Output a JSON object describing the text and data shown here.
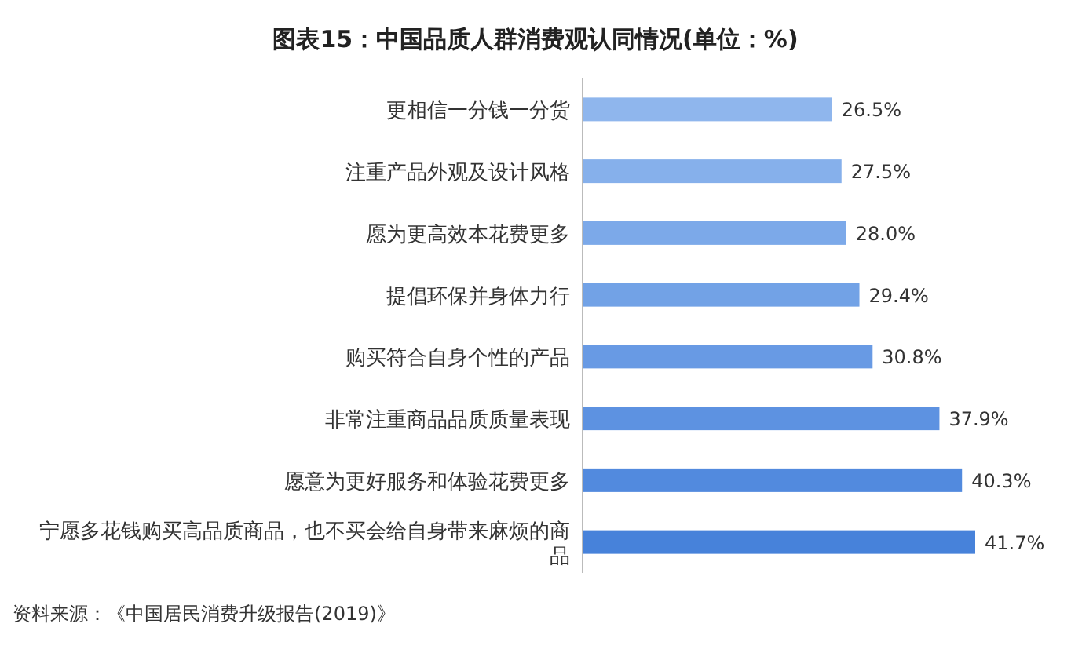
{
  "chart_data": {
    "type": "bar",
    "orientation": "horizontal",
    "title": "图表15：中国品质人群消费观认同情况(单位：%)",
    "categories": [
      "更相信一分钱一分货",
      "注重产品外观及设计风格",
      "愿为更高效本花费更多",
      "提倡环保并身体力行",
      "购买符合自身个性的产品",
      "非常注重商品品质质量表现",
      "愿意为更好服务和体验花费更多",
      "宁愿多花钱购买高品质商品，也不买会给自身带来麻烦的商品"
    ],
    "values": [
      26.5,
      27.5,
      28.0,
      29.4,
      30.8,
      37.9,
      40.3,
      41.7
    ],
    "value_labels": [
      "26.5%",
      "27.5%",
      "28.0%",
      "29.4%",
      "30.8%",
      "37.9%",
      "40.3%",
      "41.7%"
    ],
    "colors": [
      "#8fb6ed",
      "#86b0eb",
      "#7ca9e9",
      "#72a2e6",
      "#689ae4",
      "#5d92e1",
      "#528ade",
      "#4782da"
    ],
    "annotations": [
      "资料来源：《中国居民消费升级报告(2019)》"
    ]
  }
}
